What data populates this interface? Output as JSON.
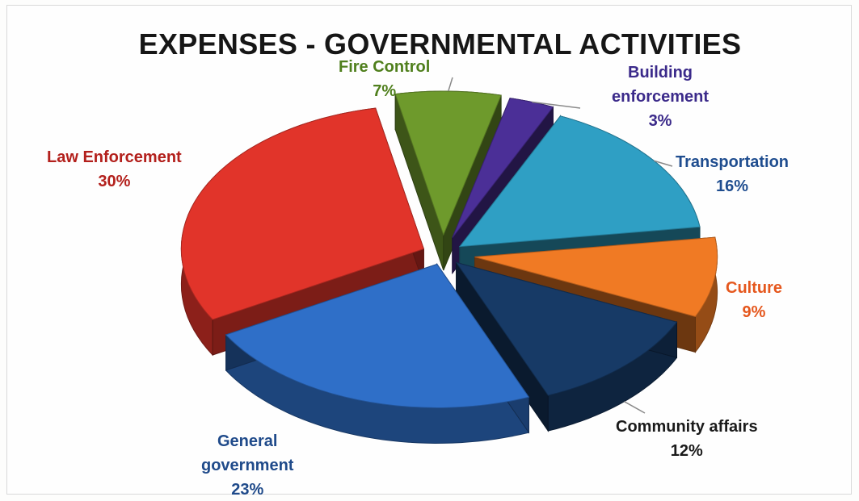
{
  "chart_data": {
    "type": "pie",
    "title": "EXPENSES - GOVERNMENTAL ACTIVITIES",
    "style": "3d-exploded",
    "slices": [
      {
        "label_lines": [
          "Fire Control"
        ],
        "value": 7,
        "value_label": "7%",
        "color": "#6e9a2c"
      },
      {
        "label_lines": [
          "Building",
          "enforcement"
        ],
        "value": 3,
        "value_label": "3%",
        "color": "#4b2f97"
      },
      {
        "label_lines": [
          "Transportation"
        ],
        "value": 16,
        "value_label": "16%",
        "color": "#2f9fc4"
      },
      {
        "label_lines": [
          "Culture"
        ],
        "value": 9,
        "value_label": "9%",
        "color": "#f07a24"
      },
      {
        "label_lines": [
          "Community affairs"
        ],
        "value": 12,
        "value_label": "12%",
        "color": "#173a66"
      },
      {
        "label_lines": [
          "General",
          "government"
        ],
        "value": 23,
        "value_label": "23%",
        "color": "#2f6fc8"
      },
      {
        "label_lines": [
          "Law Enforcement"
        ],
        "value": 30,
        "value_label": "30%",
        "color": "#e1342a"
      }
    ],
    "label_colors": [
      "#4f7f1c",
      "#3b2a8a",
      "#1f4d8f",
      "#e5571d",
      "#1a1a1a",
      "#1f4a8a",
      "#b3201c"
    ]
  }
}
